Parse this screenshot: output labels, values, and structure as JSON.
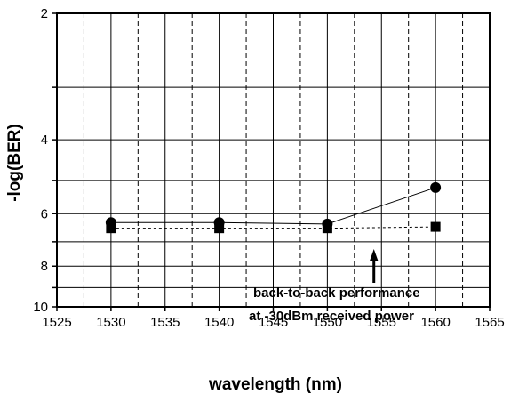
{
  "chart_data": {
    "type": "line",
    "xlabel": "wavelength  (nm)",
    "ylabel": "-log(BER)",
    "xlim": [
      1525,
      1565
    ],
    "ylim": [
      10,
      2
    ],
    "y_scale": "log",
    "y_inverted": true,
    "x_ticks": [
      "1525",
      "1530",
      "1535",
      "1540",
      "1545",
      "1550",
      "1555",
      "1560",
      "1565"
    ],
    "y_ticks": [
      "2",
      "4",
      "6",
      "8",
      "10"
    ],
    "grid": true,
    "series": [
      {
        "marker": "circle",
        "line_style": "solid",
        "x": [
          1530,
          1540,
          1550,
          1560
        ],
        "y": [
          6.3,
          6.3,
          6.35,
          5.2
        ]
      },
      {
        "marker": "square",
        "line_style": "dashed",
        "x": [
          1530,
          1540,
          1550,
          1560
        ],
        "y": [
          6.5,
          6.5,
          6.5,
          6.45
        ]
      }
    ],
    "annotation": {
      "lines": [
        "back-to-back performance",
        "at -30dBm received power"
      ],
      "arrow_x": 1554.3
    }
  }
}
